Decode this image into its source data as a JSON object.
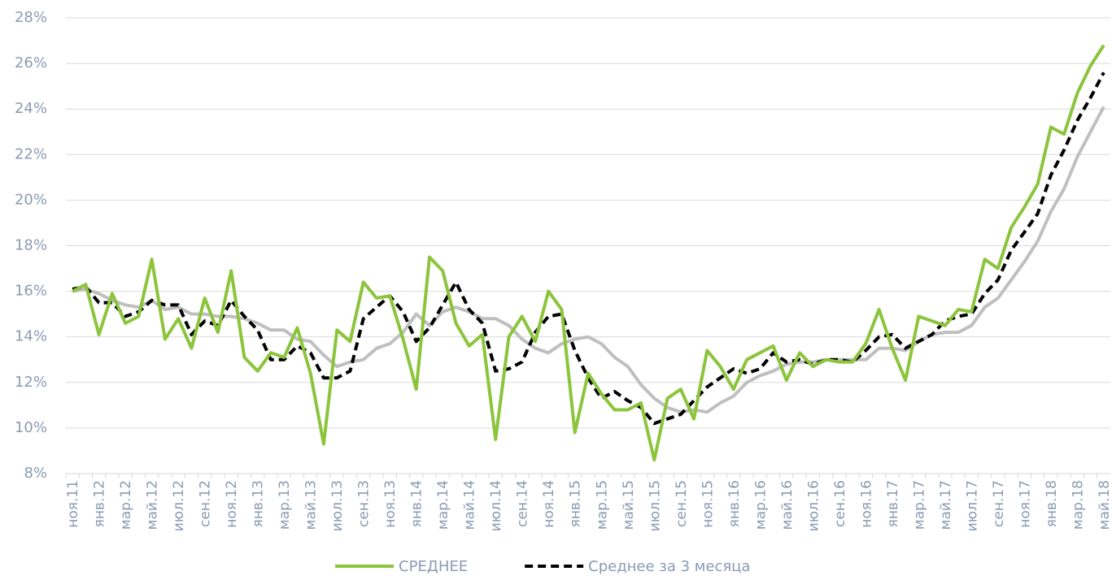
{
  "chart_data": {
    "type": "line",
    "categories": [
      "ноя.11",
      null,
      "янв.12",
      null,
      "мар.12",
      null,
      "май.12",
      null,
      "июл.12",
      null,
      "сен.12",
      null,
      "ноя.12",
      null,
      "янв.13",
      null,
      "мар.13",
      null,
      "май.13",
      null,
      "июл.13",
      null,
      "сен.13",
      null,
      "ноя.13",
      null,
      "янв.14",
      null,
      "мар.14",
      null,
      "май.14",
      null,
      "июл.14",
      null,
      "сен.14",
      null,
      "ноя.14",
      null,
      "янв.15",
      null,
      "мар.15",
      null,
      "май.15",
      null,
      "июл.15",
      null,
      "сен.15",
      null,
      "ноя.15",
      null,
      "янв.16",
      null,
      "мар.16",
      null,
      "май.16",
      null,
      "июл.16",
      null,
      "сен.16",
      null,
      "ноя.16",
      null,
      "янв.17",
      null,
      "мар.17",
      null,
      "май.17",
      null,
      "июл.17",
      null,
      "сен.17",
      null,
      "ноя.17",
      null,
      "янв.18",
      null,
      "мар.18",
      null,
      "май.18"
    ],
    "series": [
      {
        "name": "СРЕДНЕЕ",
        "color": "#8cc43c",
        "dash": false,
        "values": [
          16.0,
          16.3,
          14.1,
          15.9,
          14.6,
          14.9,
          17.4,
          13.9,
          14.8,
          13.5,
          15.7,
          14.2,
          16.9,
          13.1,
          12.5,
          13.3,
          13.1,
          14.4,
          12.4,
          9.3,
          14.3,
          13.8,
          16.4,
          15.7,
          15.8,
          13.9,
          11.7,
          17.5,
          16.9,
          14.6,
          13.6,
          14.1,
          9.5,
          14.0,
          14.9,
          13.8,
          16.0,
          15.2,
          9.8,
          12.4,
          11.5,
          10.8,
          10.8,
          11.1,
          8.6,
          11.3,
          11.7,
          10.4,
          13.4,
          12.7,
          11.7,
          13.0,
          13.3,
          13.6,
          12.1,
          13.3,
          12.7,
          13.0,
          12.9,
          12.9,
          13.7,
          15.2,
          13.5,
          12.1,
          14.9,
          14.7,
          14.5,
          15.2,
          15.1,
          17.4,
          17.0,
          18.8,
          19.7,
          20.7,
          23.2,
          22.9,
          24.7,
          25.9,
          26.8
        ]
      },
      {
        "name": "Среднее за 3 месяца",
        "color": "#000000",
        "dash": true,
        "values": [
          16.1,
          16.2,
          15.5,
          15.5,
          14.9,
          15.1,
          15.6,
          15.4,
          15.4,
          14.1,
          14.7,
          14.5,
          15.6,
          14.9,
          14.3,
          13.0,
          13.0,
          13.6,
          13.3,
          12.2,
          12.2,
          12.5,
          14.8,
          15.3,
          15.8,
          15.1,
          13.8,
          14.4,
          15.4,
          16.4,
          15.2,
          14.6,
          12.5,
          12.6,
          12.9,
          14.2,
          14.9,
          15.0,
          13.4,
          12.2,
          11.3,
          11.6,
          11.2,
          10.9,
          10.2,
          10.4,
          10.6,
          11.2,
          11.8,
          12.2,
          12.6,
          12.4,
          12.6,
          13.3,
          12.9,
          13.0,
          12.8,
          13.0,
          13.0,
          12.9,
          13.4,
          14.0,
          14.1,
          13.5,
          13.8,
          14.1,
          14.7,
          14.9,
          15.0,
          15.9,
          16.5,
          17.8,
          18.6,
          19.4,
          21.1,
          22.2,
          23.5,
          24.5,
          25.6
        ]
      },
      {
        "color": "#bfbfbf",
        "dash": false,
        "values": [
          16.0,
          16.1,
          15.9,
          15.6,
          15.4,
          15.3,
          15.6,
          15.2,
          15.3,
          15.0,
          15.0,
          14.9,
          14.9,
          14.8,
          14.6,
          14.3,
          14.3,
          13.9,
          13.8,
          13.2,
          12.7,
          12.9,
          13.0,
          13.5,
          13.7,
          14.2,
          15.0,
          14.5,
          15.1,
          15.3,
          15.1,
          14.8,
          14.8,
          14.5,
          13.9,
          13.5,
          13.3,
          13.7,
          13.9,
          14.0,
          13.7,
          13.1,
          12.7,
          11.9,
          11.3,
          10.9,
          10.7,
          10.8,
          10.7,
          11.1,
          11.4,
          12.0,
          12.3,
          12.5,
          12.8,
          12.9,
          12.9,
          13.0,
          13.0,
          13.0,
          13.0,
          13.5,
          13.5,
          13.4,
          13.8,
          14.1,
          14.2,
          14.2,
          14.5,
          15.3,
          15.7,
          16.5,
          17.3,
          18.2,
          19.5,
          20.5,
          21.9,
          23.0,
          24.1
        ]
      }
    ],
    "ylim": [
      8,
      28
    ],
    "yticks": [
      {
        "value": 8,
        "label": "8%"
      },
      {
        "value": 10,
        "label": "10%"
      },
      {
        "value": 12,
        "label": "12%"
      },
      {
        "value": 14,
        "label": "14%"
      },
      {
        "value": 16,
        "label": "16%"
      },
      {
        "value": 18,
        "label": "18%"
      },
      {
        "value": 20,
        "label": "20%"
      },
      {
        "value": 22,
        "label": "22%"
      },
      {
        "value": 24,
        "label": "24%"
      },
      {
        "value": 26,
        "label": "26%"
      },
      {
        "value": 28,
        "label": "28%"
      }
    ],
    "grid": true,
    "legend": "bottom"
  }
}
